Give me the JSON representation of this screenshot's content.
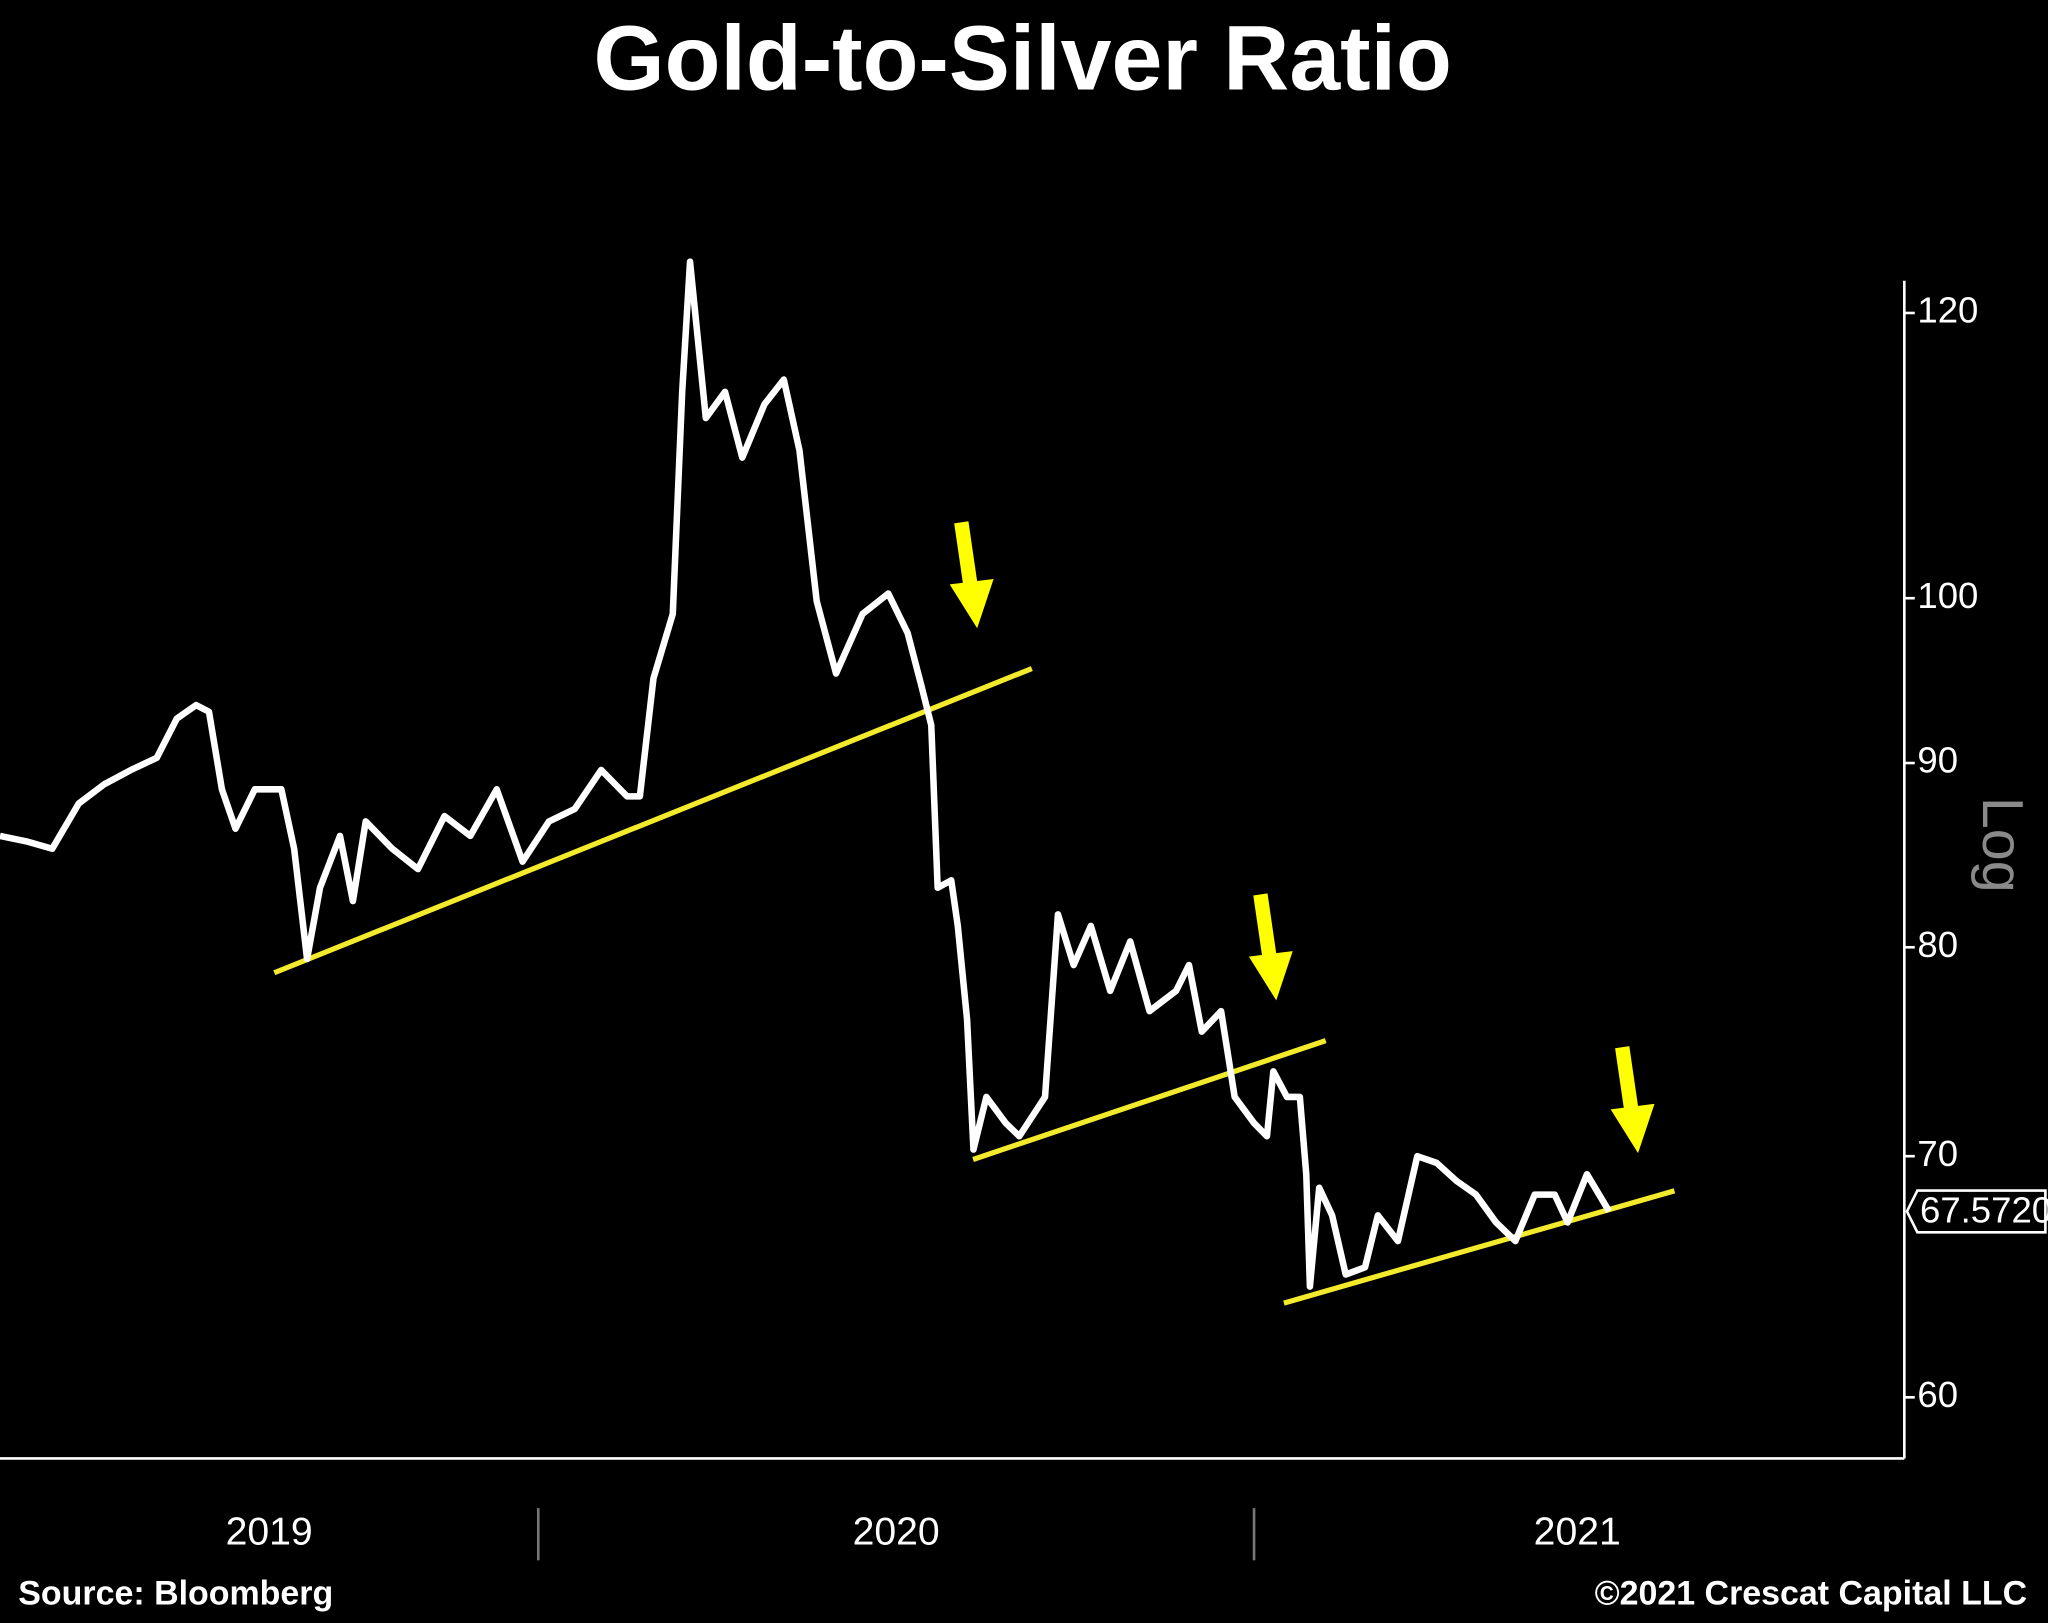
{
  "chart_data": {
    "type": "line",
    "title": "Gold-to-Silver Ratio",
    "source": "Source: Bloomberg",
    "copyright": "©2021 Crescat Capital LLC",
    "scale_label": "Log",
    "log_scale": true,
    "x": [
      2019.248,
      2019.285,
      2019.321,
      2019.358,
      2019.394,
      2019.431,
      2019.467,
      2019.495,
      2019.522,
      2019.54,
      2019.558,
      2019.577,
      2019.604,
      2019.641,
      2019.659,
      2019.677,
      2019.695,
      2019.723,
      2019.741,
      2019.759,
      2019.796,
      2019.832,
      2019.869,
      2019.905,
      2019.942,
      2019.978,
      2020.015,
      2020.051,
      2020.088,
      2020.124,
      2020.142,
      2020.161,
      2020.188,
      2020.201,
      2020.212,
      2020.234,
      2020.261,
      2020.285,
      2020.316,
      2020.343,
      2020.365,
      2020.389,
      2020.416,
      2020.453,
      2020.489,
      2020.516,
      2020.535,
      2020.549,
      2020.558,
      2020.577,
      2020.586,
      2020.599,
      2020.608,
      2020.626,
      2020.653,
      2020.672,
      2020.708,
      2020.726,
      2020.748,
      2020.772,
      2020.799,
      2020.827,
      2020.854,
      2020.891,
      2020.909,
      2020.927,
      2020.954,
      2020.973,
      2021.0,
      2021.018,
      2021.027,
      2021.046,
      2021.064,
      2021.073,
      2021.078,
      2021.091,
      2021.109,
      2021.128,
      2021.155,
      2021.173,
      2021.201,
      2021.228,
      2021.255,
      2021.283,
      2021.31,
      2021.338,
      2021.365,
      2021.392,
      2021.42,
      2021.438,
      2021.465,
      2021.496
    ],
    "series": [
      {
        "name": "Gold-to-Silver Ratio",
        "color": "#ffffff",
        "values": [
          85.9,
          85.6,
          85.2,
          87.7,
          88.8,
          89.6,
          90.3,
          92.6,
          93.4,
          93.0,
          88.5,
          86.3,
          88.5,
          88.5,
          85.2,
          79.4,
          83.1,
          85.9,
          82.4,
          86.7,
          85.2,
          84.1,
          87.0,
          85.9,
          88.5,
          84.5,
          86.7,
          87.4,
          89.6,
          88.1,
          88.1,
          95.0,
          99.0,
          114.1,
          124.0,
          112.2,
          114.1,
          109.4,
          113.2,
          115.0,
          109.9,
          99.8,
          95.3,
          99.0,
          100.3,
          97.8,
          94.6,
          92.2,
          83.1,
          83.5,
          81.1,
          76.4,
          70.3,
          72.7,
          71.5,
          70.9,
          72.7,
          81.7,
          79.1,
          81.1,
          77.8,
          80.3,
          76.8,
          77.8,
          79.1,
          75.8,
          76.8,
          72.7,
          71.5,
          70.9,
          73.9,
          72.7,
          72.7,
          69.2,
          64.4,
          68.6,
          67.4,
          64.9,
          65.2,
          67.4,
          66.3,
          70.0,
          69.7,
          68.9,
          68.3,
          67.1,
          66.3,
          68.3,
          68.3,
          67.1,
          69.2,
          67.572
        ]
      }
    ],
    "last_value": {
      "value": 67.572,
      "label": "67.5720"
    },
    "xlim": [
      2019.248,
      2021.903
    ],
    "xticks": [
      2019,
      2020,
      2021
    ],
    "ylim": [
      57.7,
      122.5
    ],
    "yticks": [
      60,
      70,
      80,
      90,
      100,
      120
    ]
  }
}
